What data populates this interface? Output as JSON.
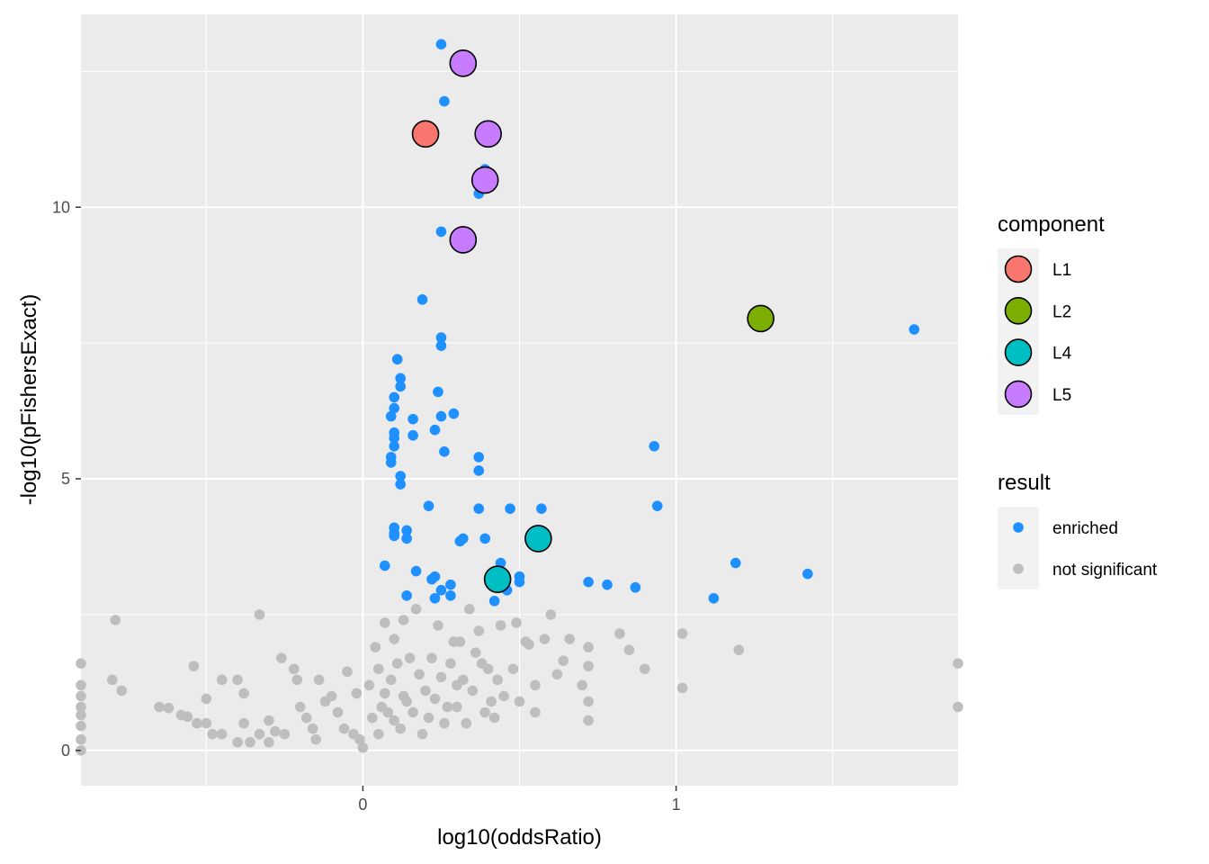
{
  "chart_data": {
    "type": "scatter",
    "xlabel": "log10(oddsRatio)",
    "ylabel": "-log10(pFishersExact)",
    "xlim": [
      -0.9,
      1.9
    ],
    "ylim": [
      -0.65,
      13.55
    ],
    "x_ticks": [
      0,
      1
    ],
    "x_tick_labels": [
      "0",
      "1"
    ],
    "y_ticks": [
      0,
      5,
      10
    ],
    "y_tick_labels": [
      "0",
      "5",
      "10"
    ],
    "grid": true,
    "panel_background": "#ebebeb",
    "grid_color": "#ffffff",
    "legends": {
      "position": "right",
      "component": {
        "title": "component",
        "entries": [
          {
            "label": "L1",
            "color": "#F8766D"
          },
          {
            "label": "L2",
            "color": "#7CAE00"
          },
          {
            "label": "L4",
            "color": "#00BFC4"
          },
          {
            "label": "L5",
            "color": "#C77CFF"
          }
        ]
      },
      "result": {
        "title": "result",
        "entries": [
          {
            "label": "enriched",
            "color": "#1E90FF"
          },
          {
            "label": "not significant",
            "color": "#BEBEBE"
          }
        ]
      }
    },
    "series": [
      {
        "name": "not significant",
        "color": "#BEBEBE",
        "points": [
          [
            -0.9,
            1.6
          ],
          [
            -0.9,
            1.2
          ],
          [
            -0.9,
            1.0
          ],
          [
            -0.9,
            0.8
          ],
          [
            -0.9,
            0.65
          ],
          [
            -0.9,
            0.45
          ],
          [
            -0.9,
            0.2
          ],
          [
            -0.9,
            0.0
          ],
          [
            -0.79,
            2.4
          ],
          [
            -0.77,
            1.1
          ],
          [
            -0.8,
            1.3
          ],
          [
            -0.65,
            0.8
          ],
          [
            -0.62,
            0.78
          ],
          [
            -0.58,
            0.65
          ],
          [
            -0.56,
            0.62
          ],
          [
            -0.54,
            1.55
          ],
          [
            -0.53,
            0.5
          ],
          [
            -0.5,
            0.5
          ],
          [
            -0.5,
            0.95
          ],
          [
            -0.48,
            0.3
          ],
          [
            -0.45,
            1.3
          ],
          [
            -0.45,
            0.3
          ],
          [
            -0.4,
            1.3
          ],
          [
            -0.4,
            0.15
          ],
          [
            -0.38,
            0.5
          ],
          [
            -0.38,
            1.05
          ],
          [
            -0.36,
            0.15
          ],
          [
            -0.33,
            2.5
          ],
          [
            -0.33,
            0.3
          ],
          [
            -0.3,
            0.15
          ],
          [
            -0.3,
            0.55
          ],
          [
            -0.28,
            0.35
          ],
          [
            -0.26,
            1.7
          ],
          [
            -0.25,
            0.3
          ],
          [
            -0.22,
            1.5
          ],
          [
            -0.21,
            1.3
          ],
          [
            -0.2,
            0.8
          ],
          [
            -0.18,
            0.6
          ],
          [
            -0.16,
            0.4
          ],
          [
            -0.15,
            0.2
          ],
          [
            -0.14,
            1.3
          ],
          [
            -0.12,
            0.9
          ],
          [
            -0.1,
            1.0
          ],
          [
            -0.08,
            0.7
          ],
          [
            -0.06,
            0.4
          ],
          [
            -0.05,
            1.45
          ],
          [
            -0.03,
            0.3
          ],
          [
            -0.02,
            1.05
          ],
          [
            -0.01,
            0.2
          ],
          [
            0.0,
            0.05
          ],
          [
            0.02,
            1.2
          ],
          [
            0.03,
            0.6
          ],
          [
            0.04,
            1.9
          ],
          [
            0.05,
            1.5
          ],
          [
            0.05,
            0.3
          ],
          [
            0.06,
            0.8
          ],
          [
            0.07,
            1.05
          ],
          [
            0.07,
            2.35
          ],
          [
            0.08,
            0.7
          ],
          [
            0.09,
            1.3
          ],
          [
            0.1,
            2.05
          ],
          [
            0.1,
            0.55
          ],
          [
            0.11,
            1.6
          ],
          [
            0.12,
            0.4
          ],
          [
            0.13,
            1.0
          ],
          [
            0.13,
            2.4
          ],
          [
            0.14,
            0.9
          ],
          [
            0.15,
            1.7
          ],
          [
            0.16,
            0.7
          ],
          [
            0.17,
            2.6
          ],
          [
            0.18,
            1.4
          ],
          [
            0.19,
            0.3
          ],
          [
            0.2,
            1.1
          ],
          [
            0.21,
            0.6
          ],
          [
            0.22,
            1.7
          ],
          [
            0.23,
            0.95
          ],
          [
            0.24,
            2.3
          ],
          [
            0.25,
            1.35
          ],
          [
            0.26,
            0.5
          ],
          [
            0.27,
            0.8
          ],
          [
            0.28,
            1.6
          ],
          [
            0.29,
            2.0
          ],
          [
            0.3,
            0.8
          ],
          [
            0.3,
            1.2
          ],
          [
            0.31,
            2.0
          ],
          [
            0.32,
            1.3
          ],
          [
            0.33,
            0.5
          ],
          [
            0.34,
            2.6
          ],
          [
            0.35,
            1.1
          ],
          [
            0.36,
            1.8
          ],
          [
            0.37,
            2.2
          ],
          [
            0.38,
            1.6
          ],
          [
            0.39,
            0.7
          ],
          [
            0.4,
            1.5
          ],
          [
            0.41,
            0.9
          ],
          [
            0.42,
            0.6
          ],
          [
            0.43,
            1.3
          ],
          [
            0.44,
            2.3
          ],
          [
            0.45,
            1.0
          ],
          [
            0.48,
            1.5
          ],
          [
            0.49,
            2.35
          ],
          [
            0.5,
            0.9
          ],
          [
            0.52,
            2.0
          ],
          [
            0.53,
            1.95
          ],
          [
            0.55,
            1.2
          ],
          [
            0.55,
            0.7
          ],
          [
            0.58,
            2.05
          ],
          [
            0.6,
            2.5
          ],
          [
            0.62,
            1.4
          ],
          [
            0.64,
            1.65
          ],
          [
            0.66,
            2.05
          ],
          [
            0.7,
            1.2
          ],
          [
            0.72,
            1.9
          ],
          [
            0.72,
            1.55
          ],
          [
            0.72,
            0.9
          ],
          [
            0.72,
            0.55
          ],
          [
            0.82,
            2.15
          ],
          [
            0.85,
            1.85
          ],
          [
            0.9,
            1.5
          ],
          [
            1.02,
            1.15
          ],
          [
            1.02,
            2.15
          ],
          [
            1.2,
            1.85
          ],
          [
            1.9,
            1.6
          ],
          [
            1.9,
            0.8
          ]
        ]
      },
      {
        "name": "enriched",
        "color": "#1E90FF",
        "points": [
          [
            0.25,
            13.0
          ],
          [
            0.26,
            11.95
          ],
          [
            0.39,
            10.7
          ],
          [
            0.37,
            10.25
          ],
          [
            0.25,
            9.55
          ],
          [
            0.19,
            8.3
          ],
          [
            0.25,
            7.6
          ],
          [
            0.25,
            7.45
          ],
          [
            0.11,
            7.2
          ],
          [
            0.12,
            6.85
          ],
          [
            0.12,
            6.7
          ],
          [
            0.1,
            6.5
          ],
          [
            0.24,
            6.6
          ],
          [
            0.1,
            6.3
          ],
          [
            0.09,
            6.15
          ],
          [
            0.25,
            6.15
          ],
          [
            0.29,
            6.2
          ],
          [
            0.16,
            6.1
          ],
          [
            0.1,
            5.85
          ],
          [
            0.23,
            5.9
          ],
          [
            0.1,
            5.75
          ],
          [
            0.16,
            5.8
          ],
          [
            0.1,
            5.6
          ],
          [
            0.26,
            5.5
          ],
          [
            0.09,
            5.4
          ],
          [
            0.09,
            5.3
          ],
          [
            0.37,
            5.4
          ],
          [
            0.37,
            5.15
          ],
          [
            0.12,
            5.05
          ],
          [
            0.12,
            4.9
          ],
          [
            0.21,
            4.5
          ],
          [
            0.37,
            4.45
          ],
          [
            0.47,
            4.45
          ],
          [
            0.57,
            4.45
          ],
          [
            0.1,
            4.1
          ],
          [
            0.14,
            4.05
          ],
          [
            0.1,
            4.0
          ],
          [
            0.1,
            3.95
          ],
          [
            0.14,
            3.9
          ],
          [
            0.32,
            3.9
          ],
          [
            0.31,
            3.85
          ],
          [
            0.39,
            3.9
          ],
          [
            0.07,
            3.4
          ],
          [
            0.44,
            3.45
          ],
          [
            0.17,
            3.3
          ],
          [
            0.23,
            3.2
          ],
          [
            0.22,
            3.15
          ],
          [
            0.5,
            3.2
          ],
          [
            0.5,
            3.1
          ],
          [
            0.28,
            3.05
          ],
          [
            0.25,
            2.95
          ],
          [
            0.46,
            2.95
          ],
          [
            0.14,
            2.85
          ],
          [
            0.23,
            2.8
          ],
          [
            0.28,
            2.85
          ],
          [
            0.42,
            2.75
          ],
          [
            0.72,
            3.1
          ],
          [
            0.78,
            3.05
          ],
          [
            0.87,
            3.0
          ],
          [
            0.93,
            5.6
          ],
          [
            0.94,
            4.5
          ],
          [
            1.12,
            2.8
          ],
          [
            1.19,
            3.45
          ],
          [
            1.42,
            3.25
          ],
          [
            1.76,
            7.75
          ]
        ]
      }
    ],
    "highlighted": [
      {
        "component": "L1",
        "x": 0.2,
        "y": 11.35
      },
      {
        "component": "L2",
        "x": 1.27,
        "y": 7.95
      },
      {
        "component": "L4",
        "x": 0.56,
        "y": 3.9
      },
      {
        "component": "L4",
        "x": 0.43,
        "y": 3.15
      },
      {
        "component": "L5",
        "x": 0.32,
        "y": 12.65
      },
      {
        "component": "L5",
        "x": 0.4,
        "y": 11.35
      },
      {
        "component": "L5",
        "x": 0.39,
        "y": 10.5
      },
      {
        "component": "L5",
        "x": 0.32,
        "y": 9.4
      }
    ]
  }
}
